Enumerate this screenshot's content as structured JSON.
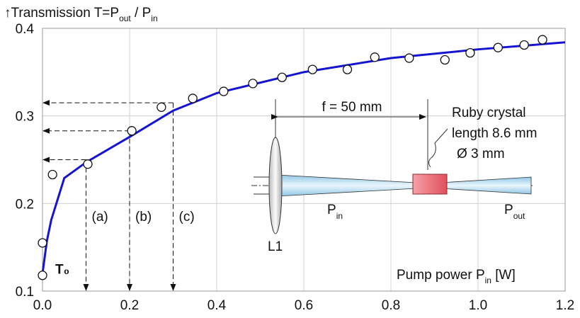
{
  "chart_data": {
    "type": "scatter",
    "y_label": {
      "text": "↑Transmission T=P",
      "sub1": "out",
      "mid": " / P",
      "sub2": "in"
    },
    "x_label": {
      "text": "Pump power P",
      "sub": "in",
      "end": " [W]"
    },
    "xlim": [
      0,
      1.2
    ],
    "ylim": [
      0.1,
      0.4
    ],
    "xticks": [
      {
        "value": 0,
        "label": "0.0"
      },
      0.2,
      0.4,
      0.6,
      0.8,
      {
        "value": 1,
        "label": "1.0"
      },
      1.2
    ],
    "yticks": [
      0.1,
      0.2,
      0.3,
      0.4
    ],
    "grid": true,
    "points": {
      "x": [
        0,
        0,
        0.023,
        0.104,
        0.205,
        0.273,
        0.345,
        0.416,
        0.483,
        0.55,
        0.62,
        0.7,
        0.763,
        0.842,
        0.924,
        0.982,
        1.046,
        1.106,
        1.148
      ],
      "y": [
        0.118,
        0.155,
        0.233,
        0.245,
        0.283,
        0.31,
        0.32,
        0.328,
        0.337,
        0.344,
        0.353,
        0.353,
        0.367,
        0.366,
        0.364,
        0.372,
        0.378,
        0.381,
        0.387
      ]
    },
    "fit": {
      "color": "#1414d2",
      "x": [
        0,
        0.01,
        0.02,
        0.05,
        0.1,
        0.2,
        0.3,
        0.4,
        0.6,
        0.8,
        1.0,
        1.2
      ],
      "y": [
        0.12,
        0.157,
        0.181,
        0.229,
        0.247,
        0.276,
        0.306,
        0.326,
        0.35,
        0.366,
        0.376,
        0.384
      ]
    },
    "t0_label": "T₀",
    "guides": [
      {
        "label": "(a)",
        "x": 0.1,
        "y": 0.25
      },
      {
        "label": "(b)",
        "x": 0.2,
        "y": 0.283
      },
      {
        "label": "(c)",
        "x": 0.3,
        "y": 0.315
      }
    ]
  },
  "inset": {
    "focal": "f = 50 mm",
    "crystal": [
      "Ruby crystal",
      "length 8.6 mm",
      "Ø 3 mm"
    ],
    "lens": "L1",
    "p_in": {
      "text": "P",
      "sub": "in"
    },
    "p_out": {
      "text": "P",
      "sub": "out"
    }
  }
}
